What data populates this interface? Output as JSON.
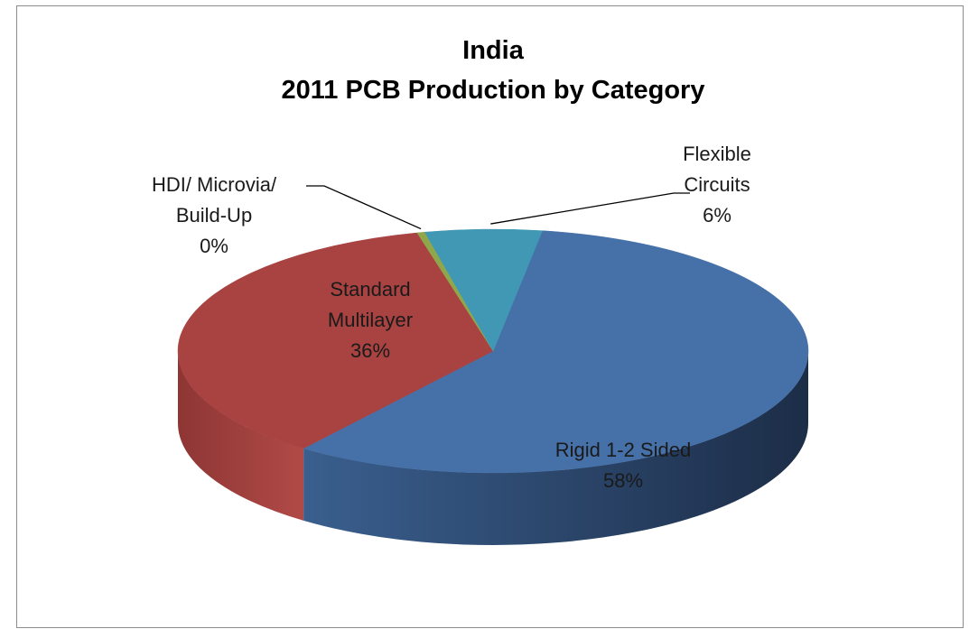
{
  "chart_data": {
    "type": "pie",
    "variant": "3d",
    "title": [
      "India",
      "2011 PCB Production by Category"
    ],
    "slices": [
      {
        "name": "Rigid 1-2 Sided",
        "value": 58,
        "label": "58%",
        "color": "#4671A8",
        "side_color": "#2C4A72"
      },
      {
        "name": "Standard Multilayer",
        "value": 36,
        "label": "36%",
        "color": "#A84341",
        "side_color": "#7A2E2C"
      },
      {
        "name": "HDI/ Microvia/ Build-Up",
        "value": 0.4,
        "label": "0%",
        "color": "#8FA74A",
        "side_color": "#6A7C35"
      },
      {
        "name": "Flexible Circuits",
        "value": 6,
        "label": "6%",
        "color": "#4098B4",
        "side_color": "#2C6E82"
      }
    ],
    "labels": [
      {
        "lines": [
          "Flexible",
          "Circuits",
          "6%"
        ]
      },
      {
        "lines": [
          "HDI/ Microvia/",
          "Build-Up",
          "0%"
        ]
      },
      {
        "lines": [
          "Standard",
          "Multilayer",
          "36%"
        ]
      },
      {
        "lines": [
          "Rigid 1-2 Sided",
          "58%"
        ]
      }
    ]
  }
}
